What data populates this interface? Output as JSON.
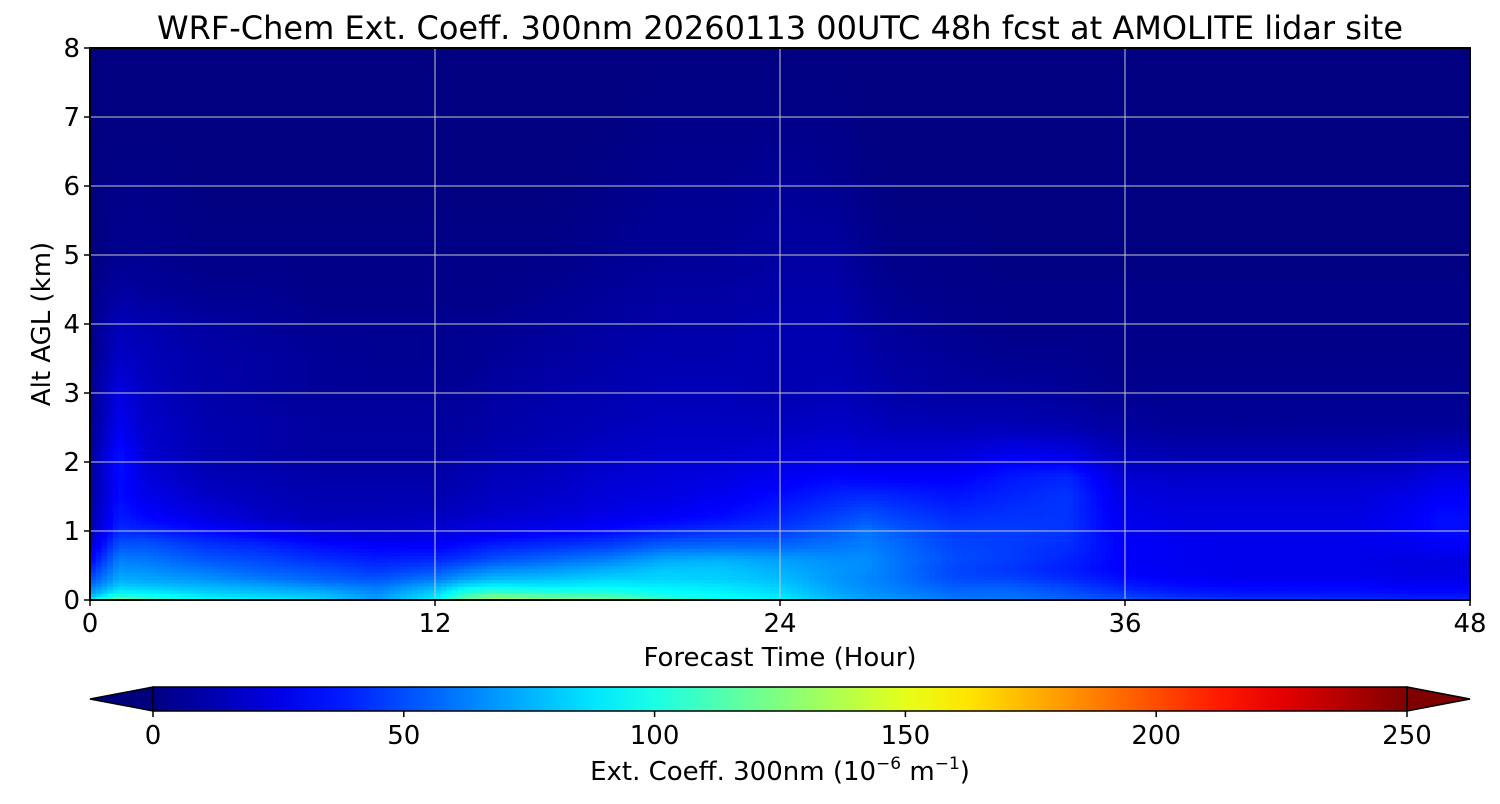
{
  "chart_data": {
    "type": "heatmap",
    "title": "WRF-Chem Ext. Coeff. 300nm  20260113 00UTC 48h fcst at AMOLITE lidar site",
    "xlabel": "Forecast Time (Hour)",
    "ylabel": "Alt AGL (km)",
    "xlim": [
      0,
      48
    ],
    "ylim": [
      0,
      8
    ],
    "x_ticks": [
      0,
      12,
      24,
      36,
      48
    ],
    "y_ticks": [
      0,
      1,
      2,
      3,
      4,
      5,
      6,
      7,
      8
    ],
    "grid": true,
    "colormap": "jet",
    "colorbar": {
      "label": "Ext. Coeff. 300nm  (10",
      "label_exp1": "−6",
      "label_mid": " m",
      "label_exp2": "−1",
      "label_end": ")",
      "range": [
        0,
        250
      ],
      "ticks": [
        0,
        50,
        100,
        150,
        200,
        250
      ],
      "extend": "both",
      "orientation": "horizontal",
      "under_color": "#00007f",
      "over_color": "#7f0000"
    },
    "x": [
      0,
      1,
      2,
      4,
      6,
      8,
      10,
      12,
      13,
      14,
      16,
      18,
      20,
      22,
      24,
      26,
      27,
      28,
      30,
      32,
      34,
      36,
      38,
      40,
      42,
      44,
      46,
      47,
      48
    ],
    "y": [
      0,
      0.1,
      0.2,
      0.3,
      0.45,
      0.6,
      0.8,
      1.0,
      1.2,
      1.5,
      1.8,
      2.1,
      2.5,
      3.0,
      3.5,
      4.0,
      4.5,
      5.0,
      6.0,
      7.0,
      8.0
    ],
    "z": [
      [
        90,
        125,
        110,
        96,
        92,
        85,
        70,
        92,
        120,
        140,
        132,
        126,
        110,
        98,
        92,
        78,
        72,
        70,
        62,
        62,
        56,
        52,
        48,
        44,
        44,
        42,
        40,
        40,
        40
      ],
      [
        70,
        94,
        92,
        84,
        80,
        76,
        66,
        84,
        104,
        112,
        106,
        104,
        96,
        92,
        86,
        72,
        68,
        64,
        58,
        58,
        52,
        44,
        38,
        36,
        36,
        36,
        34,
        34,
        34
      ],
      [
        60,
        82,
        80,
        76,
        72,
        66,
        60,
        74,
        88,
        92,
        90,
        92,
        90,
        88,
        82,
        70,
        66,
        62,
        54,
        54,
        48,
        38,
        34,
        32,
        32,
        32,
        30,
        30,
        30
      ],
      [
        50,
        74,
        72,
        68,
        62,
        56,
        52,
        62,
        72,
        78,
        80,
        84,
        84,
        82,
        78,
        68,
        64,
        60,
        50,
        48,
        42,
        34,
        30,
        28,
        28,
        28,
        26,
        26,
        26
      ],
      [
        40,
        68,
        66,
        60,
        54,
        50,
        44,
        50,
        58,
        64,
        68,
        74,
        80,
        80,
        74,
        68,
        66,
        60,
        48,
        44,
        38,
        30,
        28,
        26,
        26,
        26,
        24,
        24,
        24
      ],
      [
        30,
        62,
        60,
        52,
        48,
        42,
        38,
        40,
        44,
        50,
        56,
        62,
        72,
        74,
        70,
        66,
        66,
        60,
        50,
        46,
        40,
        30,
        28,
        26,
        26,
        26,
        24,
        24,
        24
      ],
      [
        20,
        52,
        52,
        44,
        40,
        34,
        30,
        30,
        34,
        38,
        42,
        46,
        54,
        56,
        56,
        60,
        62,
        58,
        48,
        46,
        42,
        30,
        28,
        26,
        26,
        26,
        28,
        30,
        30
      ],
      [
        14,
        42,
        40,
        34,
        28,
        22,
        20,
        22,
        24,
        26,
        30,
        34,
        40,
        44,
        46,
        54,
        60,
        54,
        46,
        46,
        44,
        28,
        26,
        26,
        26,
        26,
        30,
        34,
        34
      ],
      [
        10,
        38,
        32,
        24,
        18,
        14,
        14,
        16,
        18,
        20,
        22,
        26,
        30,
        34,
        40,
        48,
        52,
        48,
        42,
        44,
        44,
        26,
        24,
        24,
        24,
        24,
        30,
        34,
        34
      ],
      [
        8,
        34,
        26,
        18,
        14,
        12,
        12,
        12,
        14,
        16,
        18,
        22,
        24,
        28,
        34,
        40,
        42,
        40,
        36,
        40,
        44,
        24,
        22,
        22,
        22,
        22,
        26,
        30,
        30
      ],
      [
        6,
        34,
        22,
        14,
        12,
        10,
        10,
        10,
        12,
        14,
        16,
        20,
        22,
        24,
        28,
        32,
        30,
        30,
        30,
        36,
        40,
        20,
        18,
        18,
        18,
        18,
        20,
        24,
        24
      ],
      [
        6,
        36,
        20,
        12,
        10,
        8,
        8,
        8,
        10,
        12,
        14,
        18,
        20,
        20,
        22,
        24,
        22,
        22,
        22,
        28,
        26,
        14,
        12,
        12,
        12,
        12,
        14,
        16,
        16
      ],
      [
        4,
        28,
        18,
        12,
        10,
        8,
        8,
        8,
        8,
        10,
        12,
        14,
        16,
        16,
        16,
        18,
        16,
        14,
        14,
        14,
        12,
        8,
        6,
        6,
        6,
        6,
        6,
        6,
        6
      ],
      [
        4,
        24,
        16,
        10,
        8,
        6,
        6,
        6,
        6,
        8,
        10,
        12,
        14,
        14,
        12,
        14,
        12,
        10,
        8,
        8,
        6,
        4,
        4,
        4,
        4,
        4,
        4,
        4,
        4
      ],
      [
        2,
        18,
        14,
        10,
        8,
        6,
        4,
        4,
        4,
        6,
        8,
        10,
        12,
        12,
        12,
        12,
        10,
        8,
        6,
        4,
        4,
        2,
        2,
        2,
        2,
        2,
        2,
        2,
        2
      ],
      [
        2,
        14,
        12,
        8,
        6,
        4,
        4,
        4,
        4,
        4,
        6,
        8,
        10,
        10,
        12,
        12,
        8,
        6,
        4,
        2,
        2,
        2,
        2,
        2,
        2,
        2,
        2,
        2,
        2
      ],
      [
        2,
        8,
        6,
        4,
        4,
        2,
        2,
        2,
        2,
        2,
        4,
        6,
        8,
        8,
        10,
        10,
        6,
        4,
        2,
        2,
        2,
        2,
        2,
        2,
        2,
        2,
        2,
        2,
        2
      ],
      [
        0,
        4,
        4,
        2,
        2,
        2,
        2,
        2,
        2,
        2,
        2,
        4,
        6,
        6,
        8,
        8,
        4,
        2,
        2,
        0,
        0,
        0,
        0,
        0,
        0,
        0,
        0,
        0,
        0
      ],
      [
        0,
        2,
        2,
        0,
        0,
        0,
        0,
        0,
        0,
        0,
        0,
        2,
        4,
        4,
        6,
        4,
        2,
        0,
        0,
        0,
        0,
        0,
        0,
        0,
        0,
        0,
        0,
        0,
        0
      ],
      [
        0,
        0,
        0,
        0,
        0,
        0,
        0,
        0,
        0,
        0,
        0,
        0,
        2,
        2,
        2,
        2,
        0,
        0,
        0,
        0,
        0,
        0,
        0,
        0,
        0,
        0,
        0,
        0,
        0
      ],
      [
        0,
        0,
        0,
        0,
        0,
        0,
        0,
        0,
        0,
        0,
        0,
        0,
        0,
        0,
        0,
        0,
        0,
        0,
        0,
        0,
        0,
        0,
        0,
        0,
        0,
        0,
        0,
        0,
        0
      ]
    ]
  }
}
